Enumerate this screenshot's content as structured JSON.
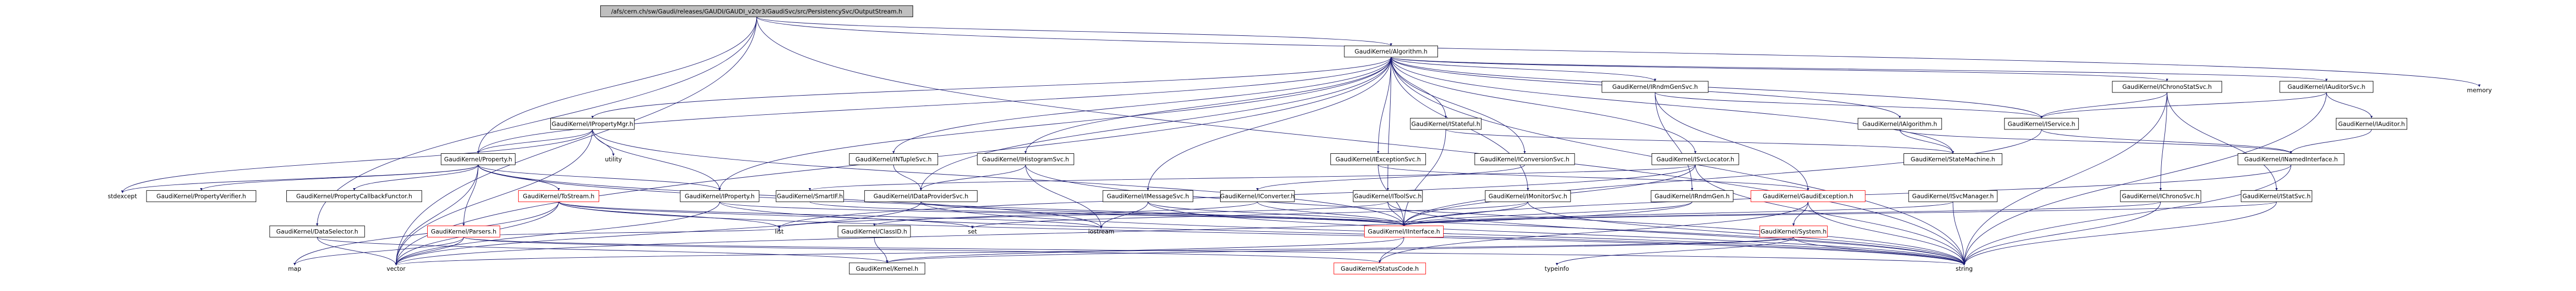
{
  "nodes": [
    {
      "label": "/afs/cern.ch/sw/Gaudi/releases/GAUDI/GAUDI_v20r3/GaudiSvc/src/PersistencySvc/OutputStream.h"
    },
    {
      "label": "GaudiKernel/Algorithm.h"
    },
    {
      "label": "memory"
    },
    {
      "label": "GaudiKernel/IRndmGenSvc.h"
    },
    {
      "label": "GaudiKernel/IChronoStatSvc.h"
    },
    {
      "label": "GaudiKernel/IAuditorSvc.h"
    },
    {
      "label": "GaudiKernel/IPropertyMgr.h"
    },
    {
      "label": "GaudiKernel/IStateful.h"
    },
    {
      "label": "GaudiKernel/IAlgorithm.h"
    },
    {
      "label": "GaudiKernel/IService.h"
    },
    {
      "label": "GaudiKernel/IAuditor.h"
    },
    {
      "label": "GaudiKernel/Property.h"
    },
    {
      "label": "utility"
    },
    {
      "label": "GaudiKernel/INTupleSvc.h"
    },
    {
      "label": "GaudiKernel/IHistogramSvc.h"
    },
    {
      "label": "GaudiKernel/IExceptionSvc.h"
    },
    {
      "label": "GaudiKernel/IConversionSvc.h"
    },
    {
      "label": "GaudiKernel/ISvcLocator.h"
    },
    {
      "label": "GaudiKernel/StateMachine.h"
    },
    {
      "label": "GaudiKernel/INamedInterface.h"
    },
    {
      "label": "stdexcept"
    },
    {
      "label": "GaudiKernel/PropertyVerifier.h"
    },
    {
      "label": "GaudiKernel/PropertyCallbackFunctor.h"
    },
    {
      "label": "GaudiKernel/ToStream.h"
    },
    {
      "label": "GaudiKernel/IProperty.h"
    },
    {
      "label": "GaudiKernel/SmartIF.h"
    },
    {
      "label": "GaudiKernel/IDataProviderSvc.h"
    },
    {
      "label": "GaudiKernel/IMessageSvc.h"
    },
    {
      "label": "GaudiKernel/IConverter.h"
    },
    {
      "label": "GaudiKernel/IToolSvc.h"
    },
    {
      "label": "GaudiKernel/IMonitorSvc.h"
    },
    {
      "label": "GaudiKernel/IRndmGen.h"
    },
    {
      "label": "GaudiKernel/GaudiException.h"
    },
    {
      "label": "GaudiKernel/ISvcManager.h"
    },
    {
      "label": "GaudiKernel/IChronoSvc.h"
    },
    {
      "label": "GaudiKernel/IStatSvc.h"
    },
    {
      "label": "GaudiKernel/DataSelector.h"
    },
    {
      "label": "GaudiKernel/Parsers.h"
    },
    {
      "label": "list"
    },
    {
      "label": "GaudiKernel/ClassID.h"
    },
    {
      "label": "set"
    },
    {
      "label": "iostream"
    },
    {
      "label": "GaudiKernel/IInterface.h"
    },
    {
      "label": "GaudiKernel/System.h"
    },
    {
      "label": "map"
    },
    {
      "label": "vector"
    },
    {
      "label": "GaudiKernel/Kernel.h"
    },
    {
      "label": "typeinfo"
    },
    {
      "label": "GaudiKernel/StatusCode.h"
    },
    {
      "label": "string"
    }
  ]
}
